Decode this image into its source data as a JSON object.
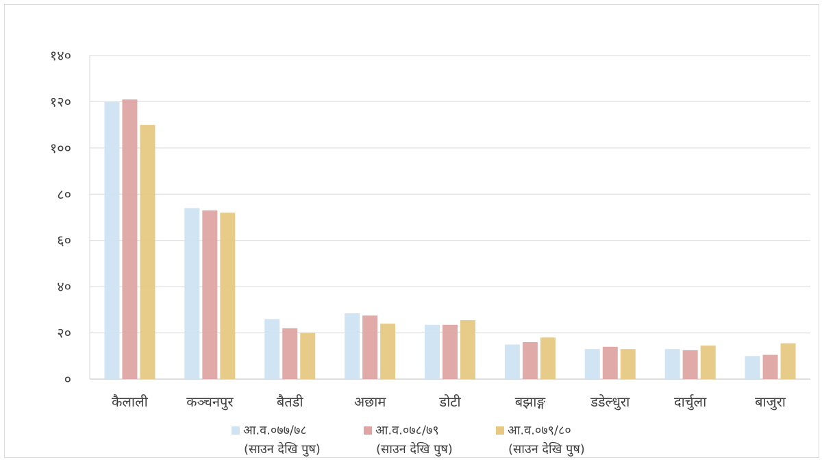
{
  "chart_data": {
    "type": "bar",
    "categories": [
      "कैलाली",
      "कञ्चनपुर",
      "बैतडी",
      "अछाम",
      "डोटी",
      "बझाङ्ग",
      "डडेल्धुरा",
      "दार्चुला",
      "बाजुरा"
    ],
    "series": [
      {
        "name": "आ.व.०७७/७८",
        "sub": "(साउन देखि पुष)",
        "color": "#cfe3f3",
        "values": [
          120,
          74,
          26,
          28.5,
          23.5,
          15,
          13,
          13,
          10
        ]
      },
      {
        "name": "आ.व.०७८/७९",
        "sub": "(साउन देखि पुष)",
        "color": "#dea5a4",
        "values": [
          121,
          73,
          22,
          27.5,
          23.5,
          16,
          14,
          12.5,
          10.5
        ]
      },
      {
        "name": "आ.व.०७९/८०",
        "sub": "(साउन देखि पुष)",
        "color": "#e6c882",
        "values": [
          110,
          72,
          20,
          24,
          25.5,
          18,
          13,
          14.5,
          15.5
        ]
      }
    ],
    "ylim": [
      0,
      140
    ],
    "yticks": [
      0,
      20,
      40,
      60,
      80,
      100,
      120,
      140
    ],
    "ytick_labels": [
      "०",
      "२०",
      "४०",
      "६०",
      "८०",
      "१००",
      "१२०",
      "१४०"
    ],
    "grid": true,
    "legend_position": "bottom"
  }
}
